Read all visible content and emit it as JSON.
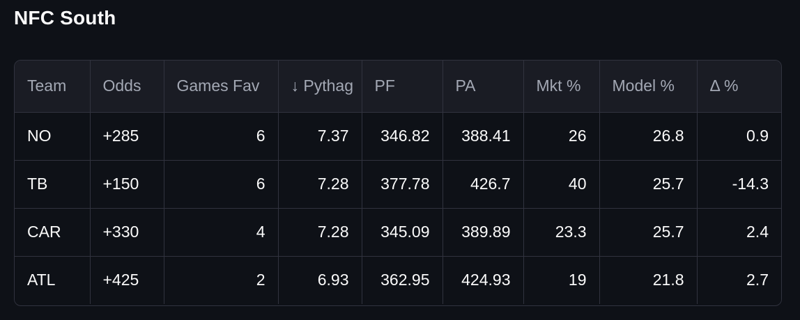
{
  "title": "NFC South",
  "table": {
    "columns": [
      "Team",
      "Odds",
      "Games Fav",
      "↓ Pythag",
      "PF",
      "PA",
      "Mkt %",
      "Model %",
      "Δ %"
    ],
    "rows": [
      [
        "NO",
        "+285",
        "6",
        "7.37",
        "346.82",
        "388.41",
        "26",
        "26.8",
        "0.9"
      ],
      [
        "TB",
        "+150",
        "6",
        "7.28",
        "377.78",
        "426.7",
        "40",
        "25.7",
        "-14.3"
      ],
      [
        "CAR",
        "+330",
        "4",
        "7.28",
        "345.09",
        "389.89",
        "23.3",
        "25.7",
        "2.4"
      ],
      [
        "ATL",
        "+425",
        "2",
        "6.93",
        "362.95",
        "424.93",
        "19",
        "21.8",
        "2.7"
      ]
    ]
  },
  "colors": {
    "background": "#0e1117",
    "header_background": "#1a1c24",
    "border": "#31333f",
    "header_text": "#a3a8b4",
    "cell_text": "#fafafa"
  }
}
